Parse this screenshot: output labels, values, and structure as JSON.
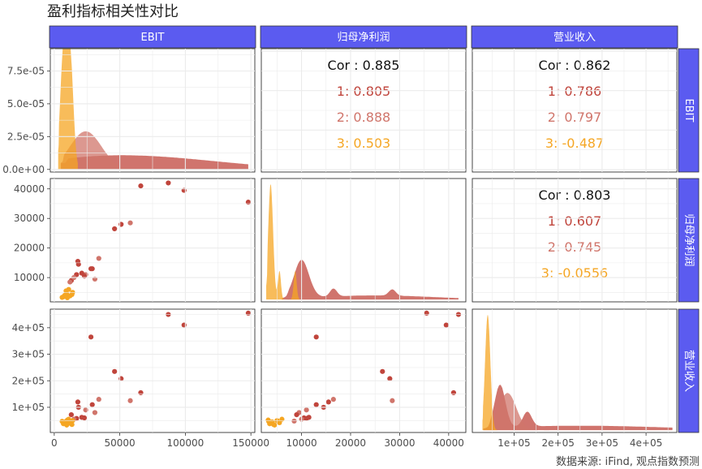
{
  "title": "盈利指标相关性对比",
  "caption": "数据来源: iFind, 观点指数预测",
  "colors": {
    "strip_fill": "#5b5bf0",
    "strip_text": "#ffffff",
    "group1": "#c0453c",
    "group2": "#d0756b",
    "group3": "#f5a623",
    "grid": "#ebebeb",
    "panel_border": "#333333"
  },
  "chart_data": {
    "type": "scatter",
    "variables": [
      "EBIT",
      "归母净利润",
      "营业收入"
    ],
    "groups": [
      "1",
      "2",
      "3"
    ],
    "axes": {
      "EBIT": {
        "range": [
          -3000,
          153000
        ],
        "ticks": [
          0,
          50000,
          100000,
          150000
        ],
        "tick_labels": [
          "0",
          "50000",
          "100000",
          "150000"
        ]
      },
      "归母净利润": {
        "range": [
          1800,
          43500
        ],
        "ticks": [
          10000,
          20000,
          30000,
          40000
        ],
        "tick_labels": [
          "10000",
          "20000",
          "30000",
          "40000"
        ]
      },
      "营业收入": {
        "range": [
          5000,
          470000
        ],
        "ticks": [
          100000,
          200000,
          300000,
          400000
        ],
        "tick_labels": [
          "1e+05",
          "2e+05",
          "3e+05",
          "4e+05"
        ],
        "tick_labels_y": [
          "1e+05",
          "2e+05",
          "3e+05",
          "4e+05"
        ]
      },
      "density": {
        "range": [
          -2e-06,
          9.2e-05
        ],
        "ticks": [
          0,
          2.5e-05,
          5e-05,
          7.5e-05
        ],
        "tick_labels": [
          "0.0e+00",
          "2.5e-05",
          "5.0e-05",
          "7.5e-05"
        ]
      }
    },
    "correlations": [
      {
        "row": 0,
        "col": 1,
        "overall": "Cor : 0.885",
        "by_group": [
          "1: 0.805",
          "2: 0.888",
          "3: 0.503"
        ]
      },
      {
        "row": 0,
        "col": 2,
        "overall": "Cor : 0.862",
        "by_group": [
          "1: 0.786",
          "2: 0.797",
          "3: -0.487"
        ]
      },
      {
        "row": 1,
        "col": 2,
        "overall": "Cor : 0.803",
        "by_group": [
          "1: 0.607",
          "2: 0.745",
          "3: -0.0556"
        ]
      }
    ],
    "points": [
      {
        "EBIT": 148000,
        "归母净利润": 35500,
        "营业收入": 455000,
        "group": 1
      },
      {
        "EBIT": 87000,
        "归母净利润": 42000,
        "营业收入": 450000,
        "group": 1
      },
      {
        "EBIT": 99000,
        "归母净利润": 39500,
        "营业收入": 410000,
        "group": 1
      },
      {
        "EBIT": 66000,
        "归母净利润": 41000,
        "营业收入": 155000,
        "group": 1
      },
      {
        "EBIT": 28000,
        "归母净利润": 13000,
        "营业收入": 365000,
        "group": 1
      },
      {
        "EBIT": 46000,
        "归母净利润": 26500,
        "营业收入": 235000,
        "group": 1
      },
      {
        "EBIT": 51000,
        "归母净利润": 28000,
        "营业收入": 208000,
        "group": 1
      },
      {
        "EBIT": 58000,
        "归母净利润": 28500,
        "营业收入": 125000,
        "group": 2
      },
      {
        "EBIT": 34000,
        "归母净利润": 16500,
        "营业收入": 130000,
        "group": 2
      },
      {
        "EBIT": 18000,
        "归母净利润": 15500,
        "营业收入": 120000,
        "group": 1
      },
      {
        "EBIT": 18500,
        "归母净利润": 14500,
        "营业收入": 100000,
        "group": 1
      },
      {
        "EBIT": 29000,
        "归母净利润": 13000,
        "营业收入": 110000,
        "group": 1
      },
      {
        "EBIT": 24000,
        "归母净利润": 11000,
        "营业收入": 90000,
        "group": 2
      },
      {
        "EBIT": 31000,
        "归母净利润": 9500,
        "营业收入": 80000,
        "group": 2
      },
      {
        "EBIT": 21000,
        "归母净利润": 11500,
        "营业收入": 62000,
        "group": 1
      },
      {
        "EBIT": 17000,
        "归母净利润": 11000,
        "营业收入": 58000,
        "group": 1
      },
      {
        "EBIT": 23000,
        "归母净利润": 10500,
        "营业收入": 60000,
        "group": 1
      },
      {
        "EBIT": 13000,
        "归母净利润": 9000,
        "营业收入": 72000,
        "group": 1
      },
      {
        "EBIT": 15000,
        "归母净利润": 10000,
        "营业收入": 55000,
        "group": 2
      },
      {
        "EBIT": 12000,
        "归母净利润": 8500,
        "营业收入": 48000,
        "group": 2
      },
      {
        "EBIT": 9000,
        "归母净利润": 5500,
        "营业收入": 42000,
        "group": 3
      },
      {
        "EBIT": 11000,
        "归母净利润": 6000,
        "营业收入": 55000,
        "group": 3
      },
      {
        "EBIT": 14000,
        "归母净利润": 5000,
        "营业收入": 50000,
        "group": 3
      },
      {
        "EBIT": 7000,
        "归母净利润": 3500,
        "营业收入": 38000,
        "group": 3
      },
      {
        "EBIT": 8000,
        "归母净利润": 4000,
        "营业收入": 45000,
        "group": 3
      },
      {
        "EBIT": 10000,
        "归母净利润": 3200,
        "营业收入": 52000,
        "group": 3
      },
      {
        "EBIT": 12000,
        "归母净利润": 3800,
        "营业收入": 40000,
        "group": 3
      },
      {
        "EBIT": 6000,
        "归母净利润": 3300,
        "营业收入": 47000,
        "group": 3
      },
      {
        "EBIT": 13500,
        "归母净利润": 4300,
        "营业收入": 35000,
        "group": 3
      },
      {
        "EBIT": 9500,
        "归母净利润": 4500,
        "营业收入": 33000,
        "group": 3
      }
    ],
    "densities": {
      "EBIT": [
        {
          "group": 1,
          "peaks": [
            [
              20000,
              3e-06,
              40000
            ],
            [
              70000,
              9e-06,
              60000
            ]
          ],
          "x": [
            5000,
            148000
          ]
        },
        {
          "group": 2,
          "peaks": [
            [
              24000,
              2.9e-05,
              12000
            ]
          ],
          "x": [
            5000,
            65000
          ]
        },
        {
          "group": 3,
          "peaks": [
            [
              7000,
              8.6e-05,
              2500
            ],
            [
              12000,
              8.6e-05,
              2500
            ]
          ],
          "x": [
            3000,
            18000
          ]
        }
      ],
      "归母净利润": [
        {
          "group": 1,
          "peaks": [
            [
              10000,
              0.00012,
              1500
            ],
            [
              16500,
              2.5e-05,
              700
            ],
            [
              28500,
              2e-05,
              700
            ],
            [
              25000,
              1.3e-05,
              12000
            ]
          ],
          "x": [
            6000,
            42000
          ]
        },
        {
          "group": 2,
          "peaks": [
            [
              11000,
              6e-05,
              1200
            ]
          ],
          "x": [
            6000,
            30000
          ]
        },
        {
          "group": 3,
          "peaks": [
            [
              3700,
              0.000365,
              500
            ],
            [
              5500,
              9e-05,
              300
            ],
            [
              8700,
              9e-05,
              300
            ]
          ],
          "x": [
            2800,
            9600
          ]
        }
      ],
      "营业收入": [
        {
          "group": 1,
          "peaks": [
            [
              68000,
              1.15e-05,
              12000
            ],
            [
              130000,
              4e-06,
              10000
            ],
            [
              250000,
              1.2e-06,
              200000
            ]
          ],
          "x": [
            30000,
            460000
          ]
        },
        {
          "group": 2,
          "peaks": [
            [
              85000,
              1e-05,
              20000
            ]
          ],
          "x": [
            30000,
            180000
          ]
        },
        {
          "group": 3,
          "peaks": [
            [
              40000,
              3.1e-05,
              6000
            ]
          ],
          "x": [
            28000,
            62000
          ]
        }
      ]
    }
  }
}
